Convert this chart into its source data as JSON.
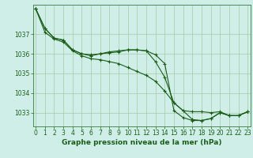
{
  "title": "Graphe pression niveau de la mer (hPa)",
  "bg_color": "#d0eee8",
  "plot_bg_color": "#d0eee8",
  "grid_color": "#a8c8a8",
  "line_color": "#1a5e1a",
  "text_color": "#1a5e1a",
  "spine_color": "#3a7a3a",
  "xlim": [
    -0.3,
    23.3
  ],
  "ylim": [
    1032.3,
    1038.5
  ],
  "yticks": [
    1033,
    1034,
    1035,
    1036,
    1037
  ],
  "xticks": [
    0,
    1,
    2,
    3,
    4,
    5,
    6,
    7,
    8,
    9,
    10,
    11,
    12,
    13,
    14,
    15,
    16,
    17,
    18,
    19,
    20,
    21,
    22,
    23
  ],
  "series": [
    [
      1038.3,
      1037.3,
      1036.8,
      1036.7,
      1036.2,
      1036.0,
      1035.95,
      1036.0,
      1036.1,
      1036.15,
      1036.2,
      1036.2,
      1036.15,
      1035.95,
      1035.5,
      1033.1,
      1032.75,
      1032.6,
      1032.6,
      1032.7,
      1033.0,
      1032.85,
      1032.85,
      1033.05
    ],
    [
      1038.3,
      1037.3,
      1036.8,
      1036.7,
      1036.2,
      1036.0,
      1035.9,
      1036.0,
      1036.05,
      1036.1,
      1036.2,
      1036.2,
      1036.15,
      1035.6,
      1034.8,
      1033.5,
      1033.1,
      1033.05,
      1033.05,
      1033.0,
      1033.05,
      1032.85,
      1032.85,
      1033.05
    ],
    [
      1038.3,
      1037.1,
      1036.75,
      1036.6,
      1036.15,
      1035.9,
      1035.75,
      1035.7,
      1035.6,
      1035.5,
      1035.3,
      1035.1,
      1034.9,
      1034.6,
      1034.1,
      1033.5,
      1033.1,
      1032.65,
      1032.6,
      1032.7,
      1033.0,
      1032.85,
      1032.85,
      1033.05
    ]
  ],
  "title_fontsize": 6.5,
  "tick_fontsize": 5.5
}
